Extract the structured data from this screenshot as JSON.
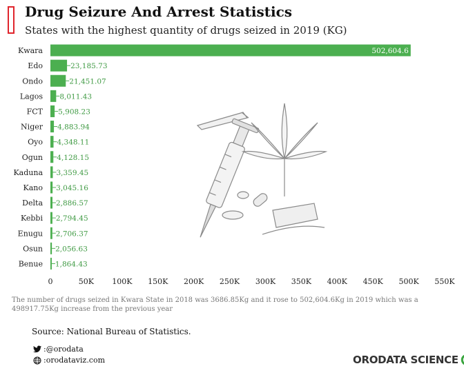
{
  "header": {
    "title": "Drug Seizure And Arrest Statistics",
    "subtitle": "States with the highest quantity of drugs seized in 2019 (KG)"
  },
  "chart_data": {
    "type": "bar",
    "orientation": "horizontal",
    "categories": [
      "Kwara",
      "Edo",
      "Ondo",
      "Lagos",
      "FCT",
      "Niger",
      "Oyo",
      "Ogun",
      "Kaduna",
      "Kano",
      "Delta",
      "Kebbi",
      "Enugu",
      "Osun",
      "Benue"
    ],
    "values": [
      502604.6,
      23185.73,
      21451.07,
      8011.43,
      5908.23,
      4883.94,
      4348.11,
      4128.15,
      3359.45,
      3045.16,
      2886.57,
      2794.45,
      2706.37,
      2056.63,
      1864.43
    ],
    "data_labels": [
      "502,604.6",
      "23,185.73",
      "21,451.07",
      "8,011.43",
      "5,908.23",
      "4,883.94",
      "4,348.11",
      "4,128.15",
      "3,359.45",
      "3,045.16",
      "2,886.57",
      "2,794.45",
      "2,706.37",
      "2,056.63",
      "1,864.43"
    ],
    "xlim": [
      0,
      550000
    ],
    "x_ticks": [
      0,
      50000,
      100000,
      150000,
      200000,
      250000,
      300000,
      350000,
      400000,
      450000,
      500000,
      550000
    ],
    "x_tick_labels": [
      "0",
      "50K",
      "100K",
      "150K",
      "200K",
      "250K",
      "300K",
      "350K",
      "400K",
      "450K",
      "500K",
      "550K"
    ],
    "grid": false,
    "bar_color": "#4caf50"
  },
  "footer": {
    "note": "The number of drugs seized in Kwara State in 2018 was 3686.85Kg and it rose to 502,604.6Kg in 2019 which was a 498917.75Kg increase from the previous year",
    "source": "Source: National Bureau of Statistics.",
    "twitter": ":@orodata",
    "website": ":orodataviz.com",
    "brand": "ORODATA SCIENCE"
  },
  "colors": {
    "accent": "#4caf50",
    "logo_red": "#e0242c",
    "brand_green": "#3aa63f"
  },
  "icons": {
    "twitter": "twitter-bird-icon",
    "website": "globe-icon",
    "brand": "brand-ring-icon"
  }
}
